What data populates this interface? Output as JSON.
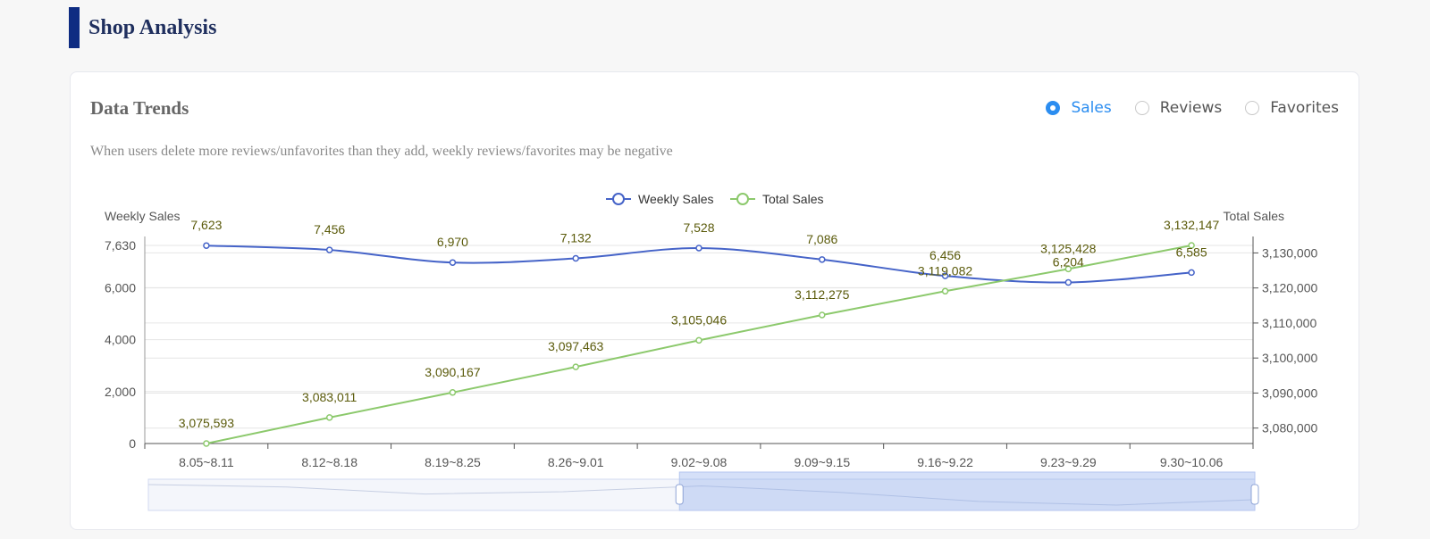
{
  "page": {
    "section_title": "Shop Analysis"
  },
  "card": {
    "title": "Data Trends",
    "note": "When users delete more reviews/unfavorites than they add, weekly reviews/favorites may be negative",
    "tabs": [
      {
        "label": "Sales",
        "active": true
      },
      {
        "label": "Reviews",
        "active": false
      },
      {
        "label": "Favorites",
        "active": false
      }
    ]
  },
  "colors": {
    "weekly": "#4563c8",
    "total": "#8cc96c",
    "label": "#5a5a0a"
  },
  "chart_data": {
    "type": "line",
    "categories": [
      "8.05~8.11",
      "8.12~8.18",
      "8.19~8.25",
      "8.26~9.01",
      "9.02~9.08",
      "9.09~9.15",
      "9.16~9.22",
      "9.23~9.29",
      "9.30~10.06"
    ],
    "series": [
      {
        "name": "Weekly Sales",
        "axis": "left",
        "values": [
          7623,
          7456,
          6970,
          7132,
          7528,
          7086,
          6456,
          6204,
          6585
        ]
      },
      {
        "name": "Total Sales",
        "axis": "right",
        "values": [
          3075593,
          3083011,
          3090167,
          3097463,
          3105046,
          3112275,
          3119082,
          3125428,
          3132147
        ]
      }
    ],
    "data_labels": {
      "Weekly Sales": [
        "7,623",
        "7,456",
        "6,970",
        "7,132",
        "7,528",
        "7,086",
        "6,456",
        "6,204",
        "6,585"
      ],
      "Total Sales": [
        "3,075,593",
        "3,083,011",
        "3,090,167",
        "3,097,463",
        "3,105,046",
        "3,112,275",
        "3,119,082",
        "3,125,428",
        "3,132,147"
      ]
    },
    "y_left": {
      "label": "Weekly Sales",
      "min": 0,
      "max": 7630,
      "ticks": [
        0,
        2000,
        4000,
        6000,
        7630
      ],
      "tick_labels": [
        "0",
        "2,000",
        "4,000",
        "6,000",
        "7,630"
      ]
    },
    "y_right": {
      "label": "Total Sales",
      "min": 3075593,
      "max": 3132147,
      "ticks": [
        3080000,
        3090000,
        3100000,
        3110000,
        3120000,
        3130000
      ],
      "tick_labels": [
        "3,080,000",
        "3,090,000",
        "3,100,000",
        "3,110,000",
        "3,120,000",
        "3,130,000"
      ]
    },
    "legend": [
      "Weekly Sales",
      "Total Sales"
    ],
    "legend_position": "top-center",
    "grid": true,
    "zoom_range": [
      0.48,
      1.0
    ]
  }
}
